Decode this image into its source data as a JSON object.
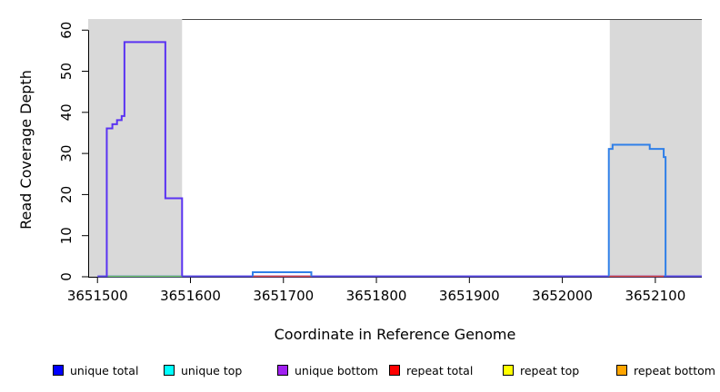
{
  "chart_data": {
    "type": "line",
    "title": "",
    "xlabel": "Coordinate in Reference Genome",
    "ylabel": "Read Coverage Depth",
    "xlim": [
      3651490,
      3652150
    ],
    "ylim": [
      0,
      62.7
    ],
    "x_ticks": [
      3651500,
      3651600,
      3651700,
      3651800,
      3651900,
      3652000,
      3652100
    ],
    "y_ticks": [
      0,
      10,
      20,
      30,
      40,
      50,
      60
    ],
    "grid": false,
    "legend_position": "bottom",
    "shaded_regions": [
      {
        "name": "left-shaded-region",
        "x0": 3651490,
        "x1": 3651591,
        "color": "#d9d9d9"
      },
      {
        "name": "right-shaded-region",
        "x0": 3652051,
        "x1": 3652150,
        "color": "#d9d9d9"
      }
    ],
    "frame_top_segment": {
      "x0": 3651591,
      "x1": 3652150,
      "color": "#4a4a4a"
    },
    "axis_color": "#000000",
    "series": [
      {
        "name": "zero-baseline",
        "color": "#5c4ce6",
        "width": 2,
        "points": [
          [
            3651500,
            0
          ],
          [
            3652150,
            0
          ]
        ]
      },
      {
        "name": "zero-segment-green",
        "color": "#76cf76",
        "width": 1.6,
        "points": [
          [
            3651511,
            0
          ],
          [
            3651591,
            0
          ]
        ]
      },
      {
        "name": "zero-segment-red-middle",
        "color": "#e04f4f",
        "width": 1.6,
        "points": [
          [
            3651667,
            0
          ],
          [
            3651730,
            0
          ]
        ]
      },
      {
        "name": "zero-segment-red-right",
        "color": "#e04f4f",
        "width": 1.6,
        "points": [
          [
            3652050,
            0
          ],
          [
            3652109,
            0
          ]
        ]
      },
      {
        "name": "left-coverage-peak",
        "color": "#5a33f2",
        "width": 2,
        "points": [
          [
            3651510,
            0
          ],
          [
            3651510,
            36
          ],
          [
            3651516,
            36
          ],
          [
            3651516,
            37
          ],
          [
            3651521,
            37
          ],
          [
            3651521,
            38
          ],
          [
            3651526,
            38
          ],
          [
            3651526,
            39
          ],
          [
            3651529,
            39
          ],
          [
            3651529,
            57
          ],
          [
            3651573,
            57
          ],
          [
            3651573,
            19
          ],
          [
            3651591,
            19
          ],
          [
            3651591,
            0
          ]
        ]
      },
      {
        "name": "middle-coverage-bump",
        "color": "#2f7fe8",
        "width": 2,
        "points": [
          [
            3651667,
            0
          ],
          [
            3651667,
            1
          ],
          [
            3651730,
            1
          ],
          [
            3651730,
            0
          ]
        ]
      },
      {
        "name": "right-coverage-peak",
        "color": "#2f7fe8",
        "width": 2,
        "points": [
          [
            3652050,
            0
          ],
          [
            3652050,
            31
          ],
          [
            3652054,
            31
          ],
          [
            3652054,
            32
          ],
          [
            3652094,
            32
          ],
          [
            3652094,
            31
          ],
          [
            3652109,
            31
          ],
          [
            3652109,
            29
          ],
          [
            3652111,
            29
          ],
          [
            3652111,
            0
          ]
        ]
      }
    ],
    "legend": {
      "entries": [
        {
          "label": "unique total",
          "color": "#0000ff"
        },
        {
          "label": "unique top",
          "color": "#00ffff"
        },
        {
          "label": "unique bottom",
          "color": "#a020f0"
        },
        {
          "label": "repeat total",
          "color": "#ff0000"
        },
        {
          "label": "repeat top",
          "color": "#ffff00"
        },
        {
          "label": "repeat bottom",
          "color": "#ffa500"
        }
      ]
    }
  }
}
